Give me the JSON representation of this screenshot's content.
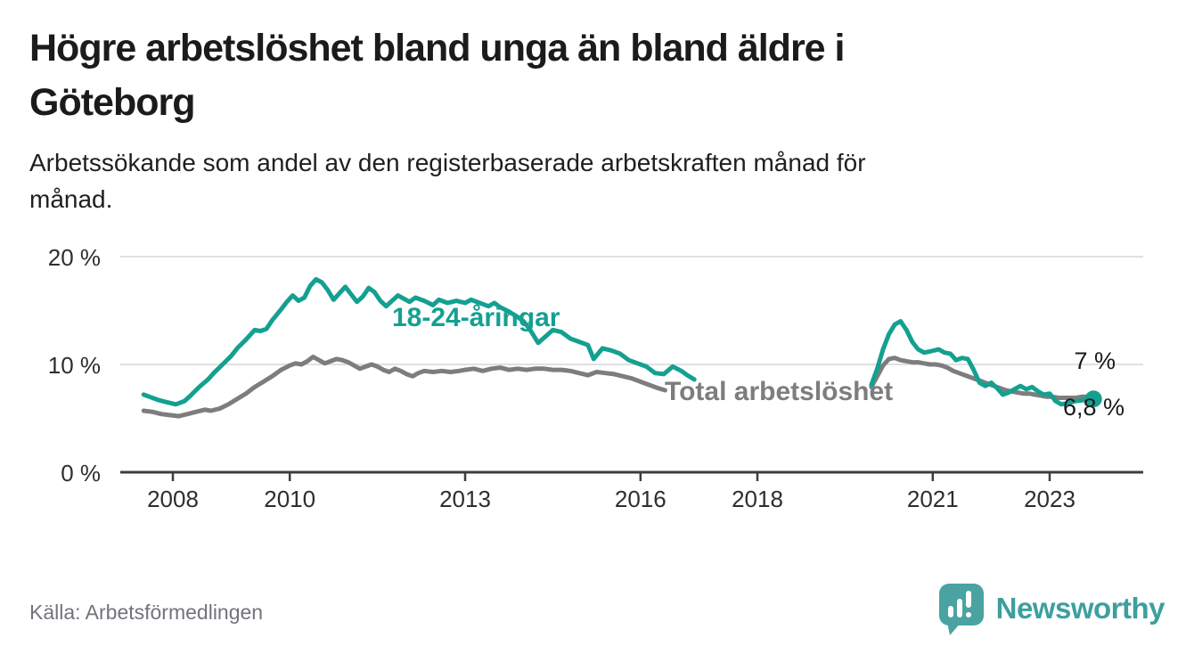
{
  "header": {
    "title": "Högre arbetslöshet bland unga än bland äldre i\nGöteborg",
    "subtitle": "Arbetssökande som andel av den registerbaserade arbetskraften månad för\nmånad."
  },
  "source": {
    "label": "Källa: Arbetsförmedlingen"
  },
  "branding": {
    "name": "Newsworthy",
    "icon": "newsworthy-speech-bubble-chart-icon"
  },
  "colors": {
    "highlight": "#14a091",
    "secondary": "#7d7d7d",
    "grid": "#e0e0e0",
    "axis": "#3d3d3d",
    "logo": "#4aa3a1"
  },
  "chart_data": {
    "type": "line",
    "unit": "%",
    "title": "Arbetssökande som andel av den registerbaserade arbetskraften månad för månad",
    "xlabel": "",
    "ylabel": "",
    "ylim": [
      0,
      20
    ],
    "xlim": [
      2007.4,
      2023.9
    ],
    "grid": "horizontal",
    "legend_position": "inline-labels",
    "y_ticks": [
      {
        "value": 0,
        "label": "0 %"
      },
      {
        "value": 10,
        "label": "10 %"
      },
      {
        "value": 20,
        "label": "20 %"
      }
    ],
    "x_ticks": [
      {
        "year": 2008,
        "label": "2008"
      },
      {
        "year": 2010,
        "label": "2010"
      },
      {
        "year": 2013,
        "label": "2013"
      },
      {
        "year": 2016,
        "label": "2016"
      },
      {
        "year": 2018,
        "label": "2018"
      },
      {
        "year": 2021,
        "label": "2021"
      },
      {
        "year": 2023,
        "label": "2023"
      }
    ],
    "series": [
      {
        "name": "18-24-åringar",
        "role": "highlight",
        "color": "#14a091",
        "end_label": "6,8 %",
        "end_value": 6.8,
        "end_dot": true,
        "segments": [
          [
            [
              2007.5,
              7.2
            ],
            [
              2007.6,
              7.0
            ],
            [
              2007.75,
              6.7
            ],
            [
              2007.9,
              6.5
            ],
            [
              2008.05,
              6.3
            ],
            [
              2008.2,
              6.6
            ],
            [
              2008.3,
              7.1
            ],
            [
              2008.45,
              7.9
            ],
            [
              2008.6,
              8.6
            ],
            [
              2008.7,
              9.2
            ],
            [
              2008.85,
              10.0
            ],
            [
              2009.0,
              10.8
            ],
            [
              2009.1,
              11.5
            ],
            [
              2009.25,
              12.3
            ],
            [
              2009.4,
              13.2
            ],
            [
              2009.5,
              13.1
            ],
            [
              2009.6,
              13.3
            ],
            [
              2009.7,
              14.1
            ],
            [
              2009.85,
              15.1
            ],
            [
              2009.95,
              15.8
            ],
            [
              2010.05,
              16.4
            ],
            [
              2010.15,
              15.9
            ],
            [
              2010.25,
              16.2
            ],
            [
              2010.35,
              17.3
            ],
            [
              2010.45,
              17.9
            ],
            [
              2010.55,
              17.6
            ],
            [
              2010.65,
              16.9
            ],
            [
              2010.75,
              16.0
            ],
            [
              2010.85,
              16.6
            ],
            [
              2010.95,
              17.2
            ],
            [
              2011.05,
              16.5
            ],
            [
              2011.15,
              15.8
            ],
            [
              2011.25,
              16.3
            ],
            [
              2011.35,
              17.1
            ],
            [
              2011.45,
              16.7
            ],
            [
              2011.55,
              15.9
            ],
            [
              2011.65,
              15.4
            ],
            [
              2011.75,
              15.9
            ],
            [
              2011.85,
              16.4
            ],
            [
              2011.95,
              16.1
            ],
            [
              2012.05,
              15.8
            ],
            [
              2012.15,
              16.2
            ],
            [
              2012.3,
              15.9
            ],
            [
              2012.45,
              15.5
            ],
            [
              2012.55,
              16.0
            ],
            [
              2012.7,
              15.7
            ],
            [
              2012.85,
              15.9
            ],
            [
              2013.0,
              15.7
            ],
            [
              2013.1,
              16.0
            ],
            [
              2013.25,
              15.7
            ],
            [
              2013.4,
              15.4
            ],
            [
              2013.5,
              15.7
            ],
            [
              2013.6,
              15.3
            ],
            [
              2013.75,
              14.9
            ],
            [
              2013.9,
              14.4
            ],
            [
              2014.0,
              14.0
            ],
            [
              2014.1,
              13.3
            ],
            [
              2014.25,
              12.0
            ],
            [
              2014.4,
              12.7
            ],
            [
              2014.5,
              13.2
            ],
            [
              2014.65,
              13.0
            ],
            [
              2014.8,
              12.4
            ],
            [
              2014.95,
              12.1
            ],
            [
              2015.1,
              11.8
            ],
            [
              2015.2,
              10.5
            ],
            [
              2015.35,
              11.5
            ],
            [
              2015.5,
              11.3
            ],
            [
              2015.65,
              11.0
            ],
            [
              2015.8,
              10.4
            ],
            [
              2015.95,
              10.1
            ],
            [
              2016.1,
              9.8
            ],
            [
              2016.25,
              9.2
            ],
            [
              2016.4,
              9.1
            ],
            [
              2016.55,
              9.8
            ],
            [
              2016.7,
              9.4
            ],
            [
              2016.8,
              9.0
            ],
            [
              2016.92,
              8.6
            ]
          ],
          [
            [
              2019.95,
              8.1
            ],
            [
              2020.05,
              9.6
            ],
            [
              2020.15,
              11.4
            ],
            [
              2020.25,
              12.8
            ],
            [
              2020.35,
              13.7
            ],
            [
              2020.45,
              14.0
            ],
            [
              2020.55,
              13.2
            ],
            [
              2020.65,
              12.1
            ],
            [
              2020.75,
              11.4
            ],
            [
              2020.85,
              11.1
            ],
            [
              2020.95,
              11.2
            ],
            [
              2021.1,
              11.4
            ],
            [
              2021.2,
              11.1
            ],
            [
              2021.3,
              11.0
            ],
            [
              2021.4,
              10.4
            ],
            [
              2021.5,
              10.6
            ],
            [
              2021.6,
              10.5
            ],
            [
              2021.7,
              9.5
            ],
            [
              2021.8,
              8.3
            ],
            [
              2021.9,
              8.0
            ],
            [
              2022.0,
              8.3
            ],
            [
              2022.1,
              7.8
            ],
            [
              2022.2,
              7.2
            ],
            [
              2022.3,
              7.4
            ],
            [
              2022.4,
              7.7
            ],
            [
              2022.5,
              8.0
            ],
            [
              2022.6,
              7.7
            ],
            [
              2022.7,
              7.9
            ],
            [
              2022.8,
              7.5
            ],
            [
              2022.9,
              7.2
            ],
            [
              2023.0,
              7.3
            ],
            [
              2023.1,
              6.6
            ],
            [
              2023.2,
              6.3
            ],
            [
              2023.3,
              6.4
            ],
            [
              2023.45,
              6.6
            ],
            [
              2023.6,
              6.7
            ],
            [
              2023.75,
              6.8
            ]
          ]
        ]
      },
      {
        "name": "Total arbetslöshet",
        "role": "secondary",
        "color": "#7d7d7d",
        "end_label": "7 %",
        "end_value": 7.0,
        "end_dot": false,
        "segments": [
          [
            [
              2007.5,
              5.7
            ],
            [
              2007.65,
              5.6
            ],
            [
              2007.8,
              5.4
            ],
            [
              2007.95,
              5.3
            ],
            [
              2008.1,
              5.2
            ],
            [
              2008.25,
              5.4
            ],
            [
              2008.4,
              5.6
            ],
            [
              2008.55,
              5.8
            ],
            [
              2008.65,
              5.7
            ],
            [
              2008.8,
              5.9
            ],
            [
              2008.95,
              6.3
            ],
            [
              2009.1,
              6.8
            ],
            [
              2009.25,
              7.3
            ],
            [
              2009.4,
              7.9
            ],
            [
              2009.55,
              8.4
            ],
            [
              2009.7,
              8.9
            ],
            [
              2009.85,
              9.5
            ],
            [
              2010.0,
              9.9
            ],
            [
              2010.1,
              10.1
            ],
            [
              2010.2,
              10.0
            ],
            [
              2010.3,
              10.3
            ],
            [
              2010.4,
              10.7
            ],
            [
              2010.5,
              10.4
            ],
            [
              2010.6,
              10.1
            ],
            [
              2010.7,
              10.3
            ],
            [
              2010.8,
              10.5
            ],
            [
              2010.9,
              10.4
            ],
            [
              2011.0,
              10.2
            ],
            [
              2011.1,
              9.9
            ],
            [
              2011.2,
              9.6
            ],
            [
              2011.3,
              9.8
            ],
            [
              2011.4,
              10.0
            ],
            [
              2011.5,
              9.8
            ],
            [
              2011.6,
              9.5
            ],
            [
              2011.7,
              9.3
            ],
            [
              2011.8,
              9.6
            ],
            [
              2011.9,
              9.4
            ],
            [
              2012.0,
              9.1
            ],
            [
              2012.1,
              8.9
            ],
            [
              2012.2,
              9.2
            ],
            [
              2012.3,
              9.4
            ],
            [
              2012.45,
              9.3
            ],
            [
              2012.6,
              9.4
            ],
            [
              2012.75,
              9.3
            ],
            [
              2012.9,
              9.4
            ],
            [
              2013.0,
              9.5
            ],
            [
              2013.15,
              9.6
            ],
            [
              2013.3,
              9.4
            ],
            [
              2013.45,
              9.6
            ],
            [
              2013.6,
              9.7
            ],
            [
              2013.75,
              9.5
            ],
            [
              2013.9,
              9.6
            ],
            [
              2014.05,
              9.5
            ],
            [
              2014.2,
              9.6
            ],
            [
              2014.35,
              9.6
            ],
            [
              2014.5,
              9.5
            ],
            [
              2014.65,
              9.5
            ],
            [
              2014.8,
              9.4
            ],
            [
              2014.95,
              9.2
            ],
            [
              2015.1,
              9.0
            ],
            [
              2015.25,
              9.3
            ],
            [
              2015.4,
              9.2
            ],
            [
              2015.55,
              9.1
            ],
            [
              2015.7,
              8.9
            ],
            [
              2015.85,
              8.7
            ],
            [
              2016.0,
              8.4
            ],
            [
              2016.15,
              8.1
            ],
            [
              2016.3,
              7.8
            ],
            [
              2016.42,
              7.6
            ]
          ],
          [
            [
              2019.95,
              7.9
            ],
            [
              2020.05,
              8.9
            ],
            [
              2020.15,
              9.9
            ],
            [
              2020.25,
              10.5
            ],
            [
              2020.35,
              10.6
            ],
            [
              2020.45,
              10.4
            ],
            [
              2020.55,
              10.3
            ],
            [
              2020.65,
              10.2
            ],
            [
              2020.75,
              10.2
            ],
            [
              2020.85,
              10.1
            ],
            [
              2020.95,
              10.0
            ],
            [
              2021.05,
              10.0
            ],
            [
              2021.15,
              9.9
            ],
            [
              2021.25,
              9.7
            ],
            [
              2021.35,
              9.4
            ],
            [
              2021.45,
              9.2
            ],
            [
              2021.55,
              9.0
            ],
            [
              2021.65,
              8.8
            ],
            [
              2021.75,
              8.6
            ],
            [
              2021.85,
              8.4
            ],
            [
              2021.95,
              8.2
            ],
            [
              2022.05,
              8.0
            ],
            [
              2022.15,
              7.8
            ],
            [
              2022.25,
              7.6
            ],
            [
              2022.35,
              7.5
            ],
            [
              2022.45,
              7.4
            ],
            [
              2022.55,
              7.3
            ],
            [
              2022.65,
              7.3
            ],
            [
              2022.75,
              7.2
            ],
            [
              2022.85,
              7.1
            ],
            [
              2022.95,
              7.0
            ],
            [
              2023.05,
              7.0
            ],
            [
              2023.15,
              6.9
            ],
            [
              2023.25,
              6.9
            ],
            [
              2023.35,
              6.9
            ],
            [
              2023.45,
              6.9
            ],
            [
              2023.55,
              7.0
            ],
            [
              2023.7,
              7.0
            ]
          ]
        ]
      }
    ]
  }
}
